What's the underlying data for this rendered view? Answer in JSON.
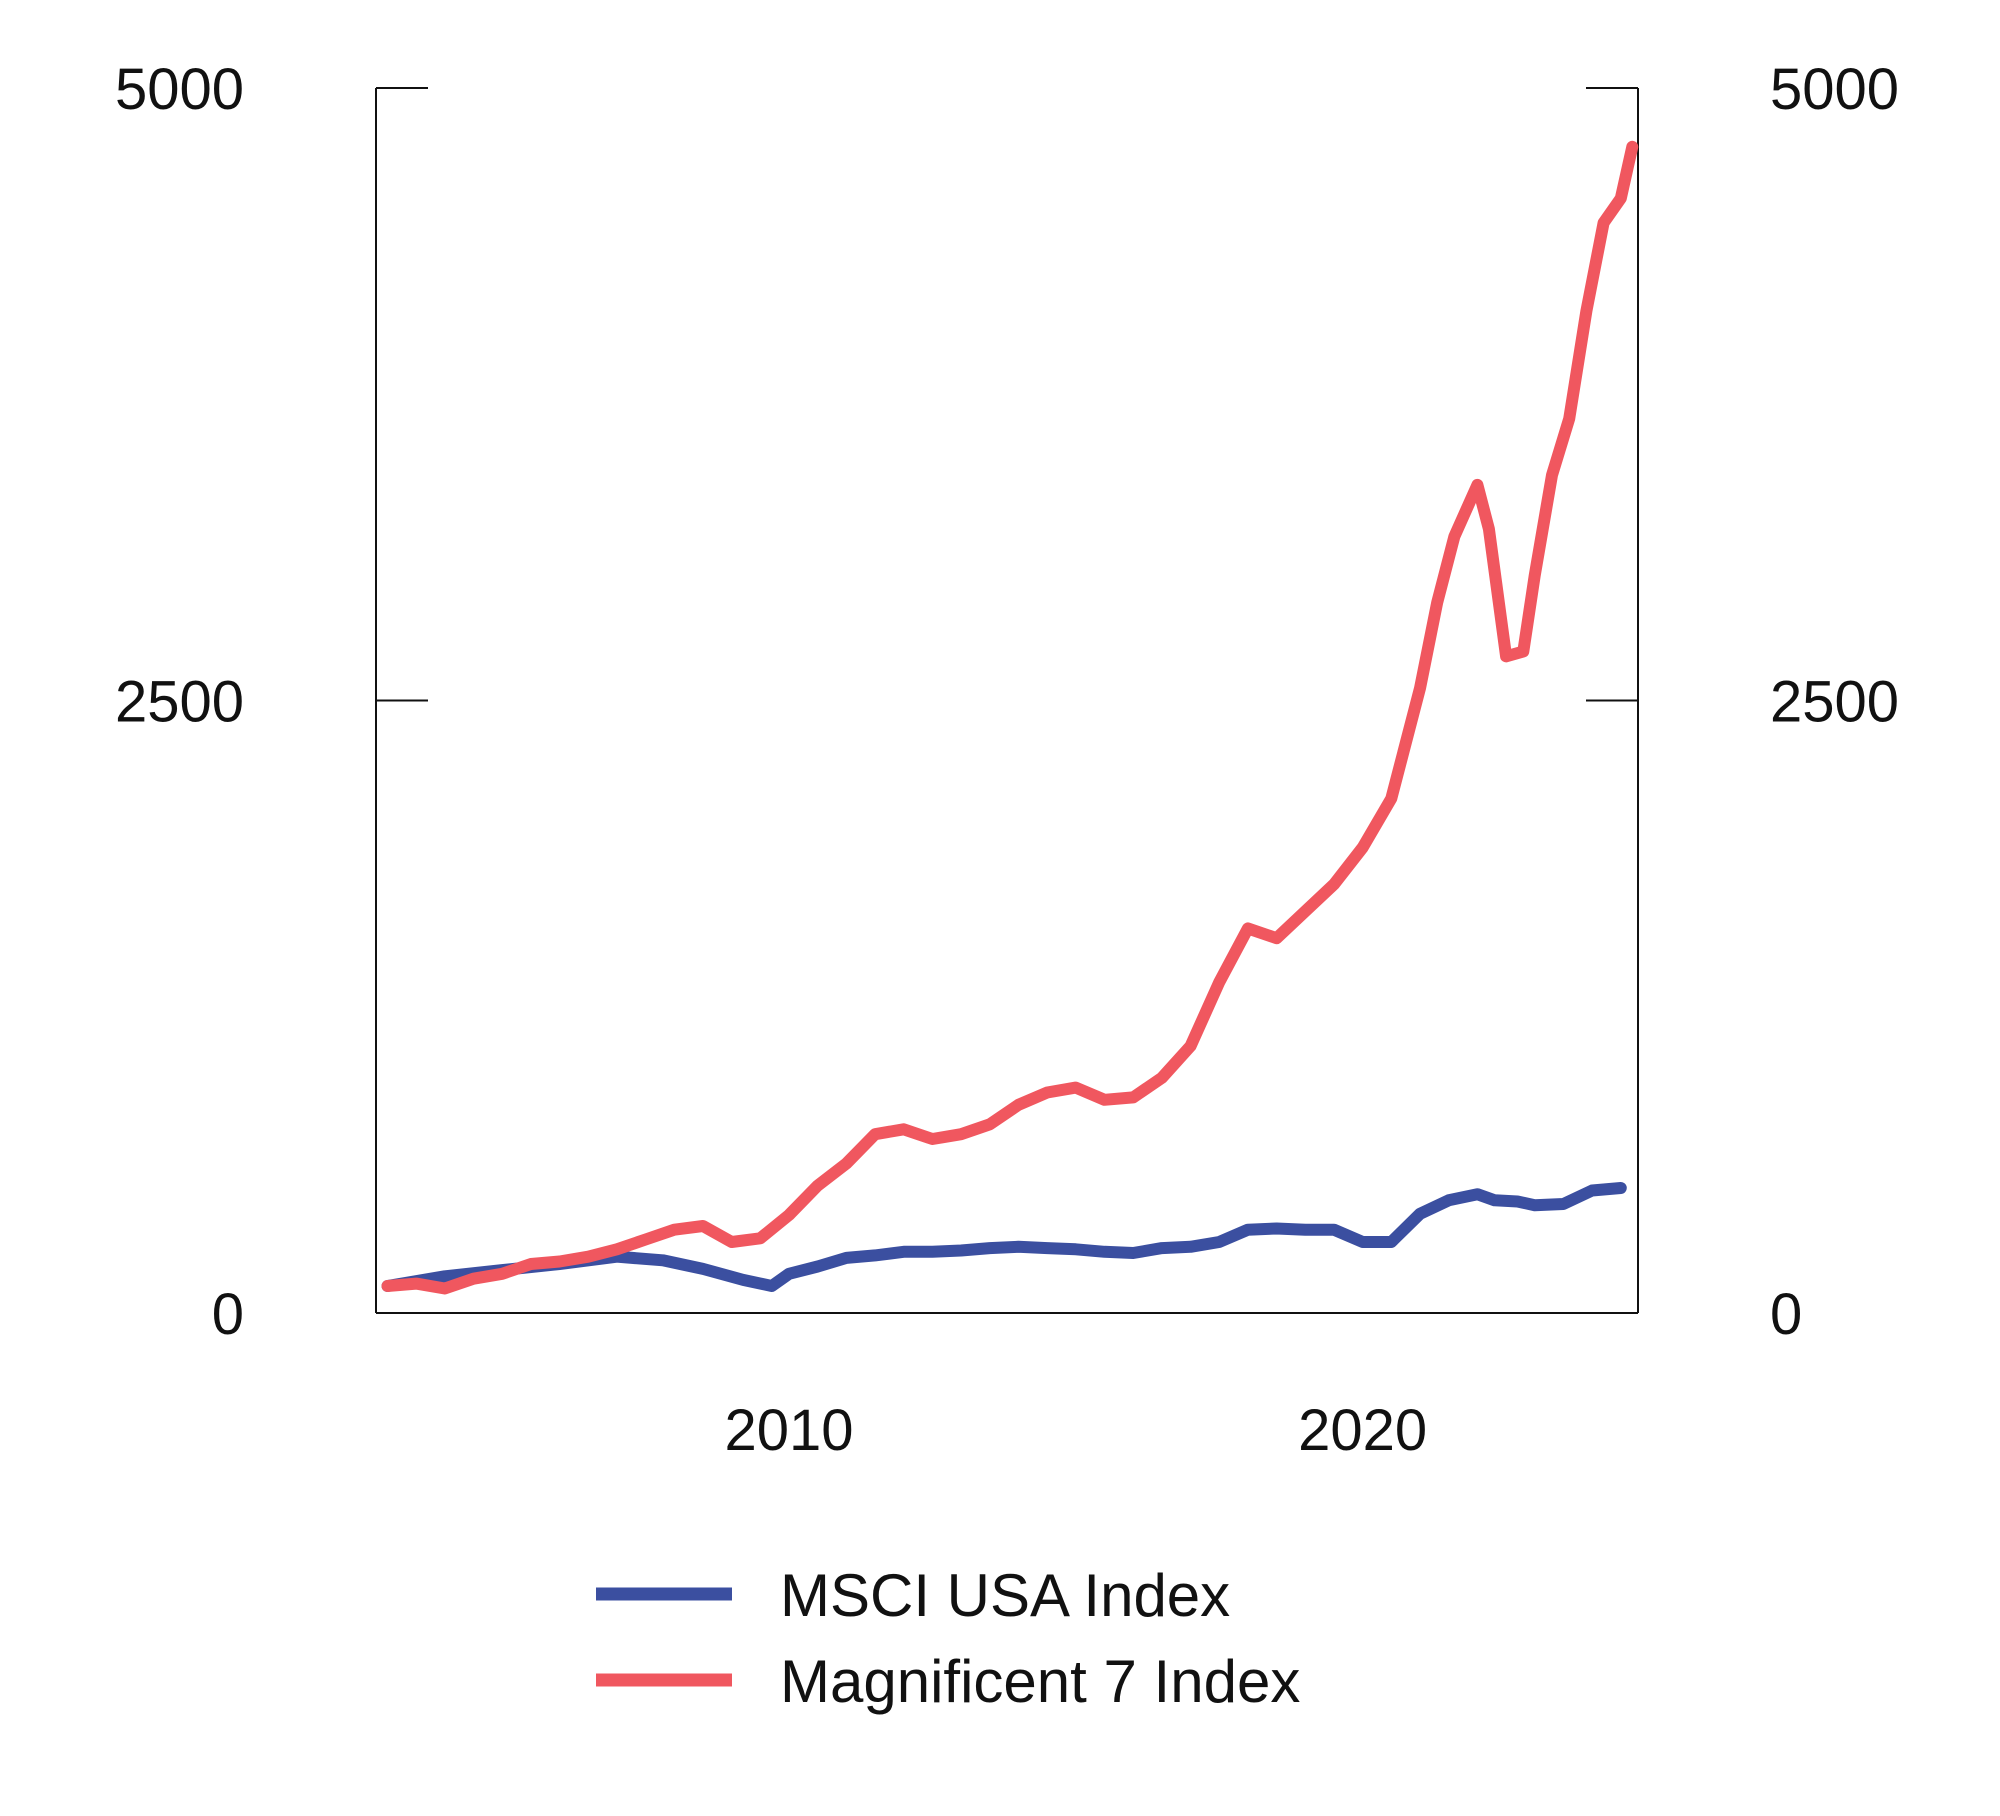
{
  "chart_data": {
    "type": "line",
    "title": "",
    "xlabel": "",
    "ylabel": "",
    "xlim": [
      2002.8,
      2024.8
    ],
    "ylim": [
      0,
      5000
    ],
    "y_ticks": [
      0,
      2500,
      5000
    ],
    "y_tick_labels": [
      "0",
      "2500",
      "5000"
    ],
    "y_ticks_right": [
      0,
      2500,
      5000
    ],
    "y_tick_labels_right": [
      "0",
      "2500",
      "5000"
    ],
    "x_ticks": [
      2010,
      2020
    ],
    "x_tick_labels": [
      "2010",
      "2020"
    ],
    "grid": false,
    "legend_position": "bottom",
    "series": [
      {
        "name": "MSCI USA Index",
        "color": "#3b4fa0",
        "x": [
          2003.0,
          2004.0,
          2005.0,
          2006.0,
          2007.0,
          2007.8,
          2008.5,
          2009.2,
          2009.7,
          2010.0,
          2010.5,
          2011.0,
          2011.5,
          2012.0,
          2012.5,
          2013.0,
          2013.5,
          2014.0,
          2014.5,
          2015.0,
          2015.5,
          2016.0,
          2016.5,
          2017.0,
          2017.5,
          2018.0,
          2018.5,
          2019.0,
          2019.5,
          2020.0,
          2020.2,
          2020.5,
          2021.0,
          2021.5,
          2022.0,
          2022.3,
          2022.7,
          2023.0,
          2023.5,
          2024.0,
          2024.5
        ],
        "y": [
          110,
          150,
          175,
          200,
          230,
          215,
          180,
          135,
          110,
          160,
          190,
          225,
          235,
          250,
          250,
          255,
          265,
          270,
          265,
          260,
          250,
          245,
          265,
          270,
          290,
          340,
          345,
          340,
          340,
          290,
          290,
          290,
          405,
          460,
          485,
          460,
          455,
          440,
          445,
          500,
          510
        ],
        "note": ""
      },
      {
        "name": "Magnificent 7 Index",
        "color": "#f0575f",
        "x": [
          2003.0,
          2003.5,
          2004.0,
          2004.5,
          2005.0,
          2005.5,
          2006.0,
          2006.5,
          2007.0,
          2007.5,
          2008.0,
          2008.5,
          2009.0,
          2009.5,
          2010.0,
          2010.5,
          2011.0,
          2011.5,
          2012.0,
          2012.5,
          2013.0,
          2013.5,
          2014.0,
          2014.5,
          2015.0,
          2015.5,
          2016.0,
          2016.5,
          2017.0,
          2017.5,
          2018.0,
          2018.5,
          2019.0,
          2019.5,
          2020.0,
          2020.5,
          2021.0,
          2021.3,
          2021.6,
          2022.0,
          2022.2,
          2022.5,
          2022.8,
          2023.0,
          2023.3,
          2023.6,
          2023.9,
          2024.2,
          2024.5,
          2024.7
        ],
        "y": [
          110,
          120,
          100,
          140,
          160,
          200,
          210,
          230,
          260,
          300,
          340,
          355,
          290,
          305,
          400,
          520,
          610,
          730,
          750,
          710,
          730,
          770,
          850,
          900,
          920,
          870,
          880,
          960,
          1090,
          1350,
          1570,
          1530,
          1640,
          1750,
          1900,
          2100,
          2550,
          2900,
          3170,
          3380,
          3200,
          2680,
          2700,
          3010,
          3420,
          3650,
          4090,
          4450,
          4550,
          4760
        ]
      }
    ]
  }
}
